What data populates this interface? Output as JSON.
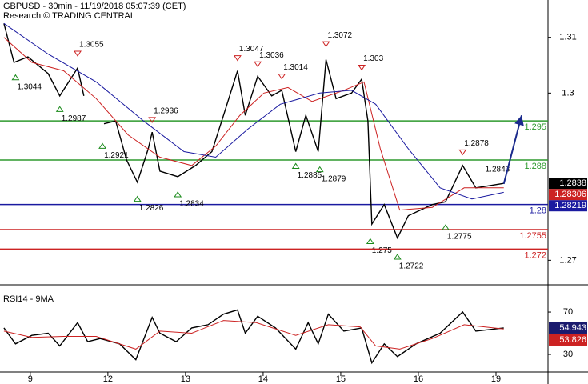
{
  "chart_data": [
    {
      "type": "price",
      "title": "GBPUSD - 30min - 11/19/2018 05:07:39 (CET)",
      "subtitle": "Research © TRADING CENTRAL",
      "xlim": [
        -0.39,
        6.67
      ],
      "xticks": [
        {
          "value": 0,
          "label": "9"
        },
        {
          "value": 1,
          "label": "12"
        },
        {
          "value": 2,
          "label": "13"
        },
        {
          "value": 3,
          "label": "14"
        },
        {
          "value": 4,
          "label": "15"
        },
        {
          "value": 5,
          "label": "16"
        },
        {
          "value": 6,
          "label": "19"
        }
      ],
      "ylim": [
        1.2656,
        1.3167
      ],
      "yticks": [
        1.27,
        1.3,
        1.31
      ],
      "series": [
        {
          "name": "GBPUSD",
          "color": "#000000",
          "x": [
            -0.34,
            -0.21,
            -0.03,
            0.23,
            0.38,
            0.61,
            0.69,
            0.9,
            0.95,
            1.1,
            1.24,
            1.38,
            1.52,
            1.57,
            1.67,
            1.9,
            2.13,
            2.34,
            2.49,
            2.67,
            2.77,
            2.93,
            3.11,
            3.24,
            3.42,
            3.55,
            3.71,
            3.81,
            3.94,
            4.14,
            4.27,
            4.35,
            4.4,
            4.56,
            4.73,
            4.87,
            5.18,
            5.35,
            5.57,
            5.74,
            6.1
          ],
          "values": [
            1.3125,
            1.3055,
            1.3065,
            1.3035,
            1.2995,
            1.3045,
            1.2995,
            null,
            1.2945,
            1.295,
            1.288,
            1.284,
            1.29,
            1.293,
            1.286,
            1.285,
            1.287,
            1.2895,
            1.296,
            1.304,
            1.296,
            1.303,
            1.2995,
            1.3005,
            1.2895,
            1.296,
            1.2895,
            1.306,
            1.299,
            1.3,
            1.3025,
            1.295,
            1.2765,
            1.28,
            1.274,
            1.278,
            1.28,
            1.2805,
            1.287,
            1.283,
            1.2838
          ]
        },
        {
          "name": "MA fast",
          "color": "#cc2222",
          "x": [
            -0.34,
            0.02,
            0.43,
            0.85,
            1.26,
            1.67,
            2.08,
            2.39,
            2.7,
            3.01,
            3.32,
            3.63,
            4.04,
            4.3,
            4.51,
            4.76,
            5.18,
            5.59,
            6.1
          ],
          "values": [
            1.31,
            1.3055,
            1.304,
            1.299,
            1.2925,
            1.2885,
            1.287,
            1.2905,
            1.296,
            1.3,
            1.301,
            1.2985,
            1.3005,
            1.302,
            1.29,
            1.279,
            1.2795,
            1.283,
            1.283
          ]
        },
        {
          "name": "MA slow",
          "color": "#1a1aa0",
          "x": [
            -0.34,
            0.23,
            0.85,
            1.46,
            1.98,
            2.39,
            2.8,
            3.22,
            3.73,
            4.14,
            4.45,
            4.87,
            5.28,
            5.69,
            6.1
          ],
          "values": [
            1.3125,
            1.307,
            1.302,
            1.295,
            1.2895,
            1.2885,
            1.2935,
            1.298,
            1.3,
            1.3005,
            1.298,
            1.29,
            1.283,
            1.281,
            1.2822
          ]
        }
      ],
      "levels": [
        {
          "value": 1.295,
          "label": "1.295",
          "color": "#2e9a2e"
        },
        {
          "value": 1.288,
          "label": "1.288",
          "color": "#2e9a2e"
        },
        {
          "value": 1.28,
          "label": "1.28",
          "color": "#1a1aa0"
        },
        {
          "value": 1.2755,
          "label": "1.2755",
          "color": "#cc2222"
        },
        {
          "value": 1.272,
          "label": "1.272",
          "color": "#cc2222"
        }
      ],
      "annotations": [
        {
          "value": 1.3044,
          "x": -0.19,
          "marker": "low"
        },
        {
          "value": 1.2987,
          "x": 0.38,
          "marker": "low"
        },
        {
          "value": 1.3055,
          "x": 0.61,
          "marker": "high"
        },
        {
          "value": 1.2921,
          "x": 0.93,
          "marker": "low"
        },
        {
          "value": 1.2826,
          "x": 1.38,
          "marker": "low"
        },
        {
          "value": 1.2936,
          "x": 1.57,
          "marker": "high"
        },
        {
          "value": 1.2834,
          "x": 1.9,
          "marker": "low"
        },
        {
          "value": 1.3047,
          "x": 2.67,
          "marker": "high"
        },
        {
          "value": 1.3036,
          "x": 2.93,
          "marker": "high"
        },
        {
          "value": 1.3014,
          "x": 3.24,
          "marker": "high"
        },
        {
          "value": 1.2885,
          "x": 3.42,
          "marker": "low"
        },
        {
          "value": 1.2879,
          "x": 3.73,
          "marker": "low"
        },
        {
          "value": 1.3072,
          "x": 3.81,
          "marker": "high"
        },
        {
          "value": 1.303,
          "x": 4.27,
          "marker": "high"
        },
        {
          "value": 1.275,
          "x": 4.38,
          "marker": "low"
        },
        {
          "value": 1.2722,
          "x": 4.73,
          "marker": "low"
        },
        {
          "value": 1.2775,
          "x": 5.35,
          "marker": "low"
        },
        {
          "value": 1.2878,
          "x": 5.57,
          "marker": "high"
        },
        {
          "value": 1.2843,
          "x": 6.02,
          "marker": "none"
        }
      ],
      "price_tags": [
        {
          "value": 1.2838,
          "color": "#000000"
        },
        {
          "value": 1.28306,
          "color": "#cc2222"
        },
        {
          "value": 1.28219,
          "color": "#1a1aa0"
        }
      ],
      "forecast_arrow": {
        "x": [
          6.1,
          6.33
        ],
        "values": [
          1.2837,
          1.296
        ],
        "color": "#1a2a8c"
      }
    },
    {
      "type": "rsi",
      "title": "RSI14 - 9MA",
      "xlim": [
        -0.39,
        6.67
      ],
      "ylim": [
        13.4,
        94.2
      ],
      "yticks": [
        30,
        70
      ],
      "series": [
        {
          "name": "RSI14",
          "color": "#000000",
          "x": [
            -0.34,
            -0.19,
            0.02,
            0.23,
            0.38,
            0.61,
            0.74,
            0.9,
            1.15,
            1.36,
            1.57,
            1.67,
            1.88,
            2.08,
            2.29,
            2.49,
            2.67,
            2.77,
            2.93,
            3.16,
            3.42,
            3.58,
            3.71,
            3.84,
            4.04,
            4.27,
            4.4,
            4.56,
            4.73,
            4.97,
            5.28,
            5.57,
            5.74,
            6.1
          ],
          "values": [
            55,
            40,
            48,
            50,
            38,
            60,
            42,
            45,
            40,
            25,
            65,
            50,
            42,
            55,
            58,
            68,
            72,
            50,
            66,
            55,
            35,
            60,
            40,
            68,
            52,
            55,
            22,
            40,
            28,
            40,
            50,
            70,
            52,
            55
          ]
        },
        {
          "name": "9MA",
          "color": "#cc2222",
          "x": [
            -0.34,
            0.02,
            0.43,
            0.85,
            1.36,
            1.67,
            2.08,
            2.49,
            2.91,
            3.42,
            3.84,
            4.25,
            4.45,
            4.76,
            5.18,
            5.59,
            6.1
          ],
          "values": [
            52,
            46,
            47,
            47,
            35,
            52,
            50,
            62,
            60,
            48,
            58,
            56,
            38,
            35,
            45,
            58,
            54
          ]
        }
      ],
      "price_tags": [
        {
          "value": 54.943,
          "color": "#1a1a6e"
        },
        {
          "value": 53.826,
          "color": "#cc2222"
        }
      ]
    }
  ]
}
